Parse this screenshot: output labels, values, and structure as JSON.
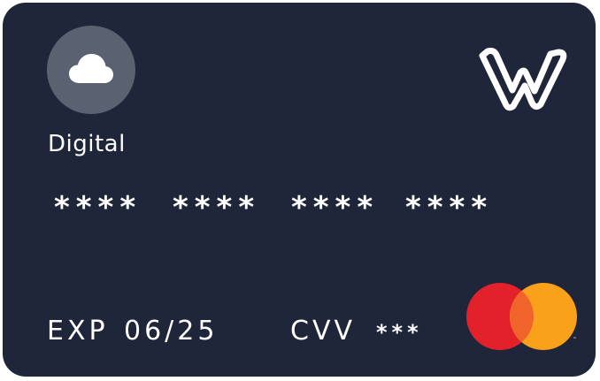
{
  "card": {
    "type_label": "Digital",
    "number_groups": [
      "****",
      "****",
      "****",
      "****"
    ],
    "expiry_label": "EXP",
    "expiry_value": "06/25",
    "cvv_label": "CVV",
    "cvv_value": "***"
  },
  "icons": {
    "type_icon": "cloud-icon",
    "brand_logo": "brand-logo-icon",
    "network_logo": "mastercard-logo-icon",
    "network_mark": "™"
  },
  "colors": {
    "card_background": "#1f2639",
    "icon_badge": "#5a6171",
    "text": "#ffffff",
    "mastercard_red": "#e3212a",
    "mastercard_orange": "#f9a11b",
    "mastercard_overlap": "#f0632b"
  }
}
